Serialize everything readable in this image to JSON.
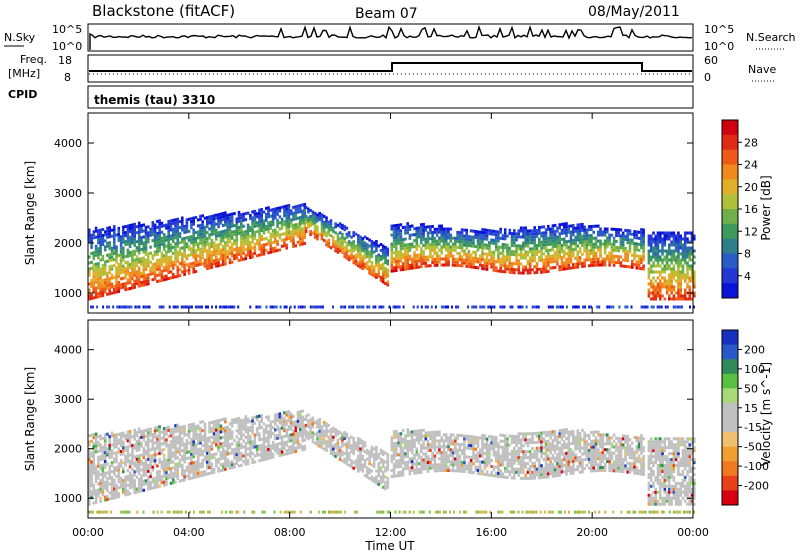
{
  "header": {
    "title": "Blackstone (fitACF)",
    "beam": "Beam 07",
    "date": "08/May/2011"
  },
  "strips": {
    "nsky_label": "N.Sky",
    "nsky_top_tick": "10^5",
    "nsky_bottom_tick": "10^0",
    "nsearch_label": "N.Search",
    "freq_label": "Freq.",
    "freq_unit": "[MHz]",
    "freq_top_tick": "18",
    "freq_bottom_tick": "8",
    "nave_label": "Nave",
    "nave_top_tick": "60",
    "nave_bottom_tick": "0",
    "cpid_label": "CPID",
    "cpid_value": "themis (tau) 3310"
  },
  "chart_data": [
    {
      "type": "heatmap",
      "panel": "power",
      "ylabel": "Slant Range [km]",
      "ylim": [
        600,
        4600
      ],
      "yticks": [
        "1000",
        "2000",
        "3000",
        "4000"
      ],
      "colorbar_label": "Power [dB]",
      "colorbar_ticks": [
        "4",
        "8",
        "12",
        "16",
        "20",
        "24",
        "28"
      ],
      "colorbar_colors": [
        "#0a14d8",
        "#2436d4",
        "#2a5cc8",
        "#2e7f8a",
        "#3e9a5c",
        "#6fb04a",
        "#b0c038",
        "#e0b02a",
        "#f08a1e",
        "#f05a18",
        "#e02a14",
        "#d00010"
      ]
    },
    {
      "type": "heatmap",
      "panel": "velocity",
      "ylabel": "Slant Range [km]",
      "ylim": [
        600,
        4600
      ],
      "yticks": [
        "1000",
        "2000",
        "3000",
        "4000"
      ],
      "colorbar_label": "Velocity [m s^-1]",
      "colorbar_ticks": [
        "200",
        "100",
        "50",
        "15",
        "-15",
        "-50",
        "-100",
        "-200"
      ],
      "colorbar_colors": [
        "#1830c0",
        "#2a58c8",
        "#2e8a58",
        "#58c040",
        "#a8d878",
        "#c0c0c0",
        "#c0c0c0",
        "#f0c070",
        "#f0a030",
        "#f07820",
        "#e84018",
        "#d80010"
      ],
      "x_ticks": [
        "00:00",
        "04:00",
        "08:00",
        "12:00",
        "16:00",
        "20:00",
        "00:00"
      ],
      "xlabel": "Time UT"
    }
  ]
}
